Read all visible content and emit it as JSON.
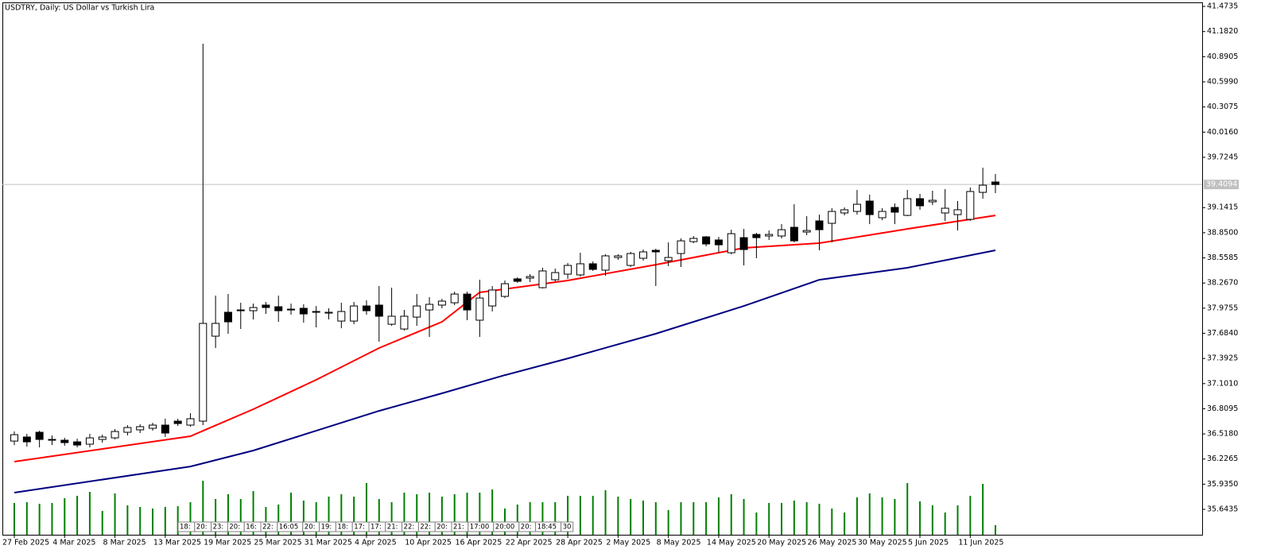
{
  "chart_data": {
    "type": "candlestick",
    "title": "USDTRY, Daily:  US Dollar vs Turkish Lira",
    "categories": [
      "27 Feb 2025",
      null,
      null,
      null,
      "4 Mar 2025",
      null,
      null,
      null,
      "8 Mar 2025",
      null,
      null,
      null,
      "13 Mar 2025",
      null,
      null,
      null,
      "19 Mar 2025",
      null,
      null,
      null,
      "25 Mar 2025",
      null,
      null,
      null,
      "31 Mar 2025",
      null,
      null,
      null,
      "4 Apr 2025",
      null,
      null,
      null,
      "10 Apr 2025",
      null,
      null,
      null,
      "16 Apr 2025",
      null,
      null,
      null,
      "22 Apr 2025",
      null,
      null,
      null,
      "28 Apr 2025",
      null,
      null,
      null,
      "2 May 2025",
      null,
      null,
      null,
      "8 May 2025",
      null,
      null,
      null,
      "14 May 2025",
      null,
      null,
      null,
      "20 May 2025",
      null,
      null,
      null,
      "26 May 2025",
      null,
      null,
      null,
      "30 May 2025",
      null,
      null,
      null,
      "5 Jun 2025",
      null,
      null,
      null,
      "11 Jun 2025",
      null,
      null
    ],
    "open": [
      36.435,
      36.482,
      36.537,
      36.454,
      36.445,
      36.426,
      36.399,
      36.454,
      36.472,
      36.537,
      36.565,
      36.583,
      36.62,
      36.666,
      36.62,
      36.666,
      37.651,
      37.928,
      37.946,
      37.946,
      38.011,
      37.992,
      37.955,
      37.974,
      37.928,
      37.918,
      37.826,
      37.826,
      38.001,
      38.011,
      37.789,
      37.734,
      37.872,
      37.955,
      38.011,
      38.038,
      38.139,
      37.836,
      38.001,
      38.112,
      38.315,
      38.324,
      38.213,
      38.305,
      38.37,
      38.361,
      38.49,
      38.416,
      38.563,
      38.471,
      38.554,
      38.646,
      38.526,
      38.609,
      38.747,
      38.802,
      38.766,
      38.618,
      38.793,
      38.83,
      38.812,
      38.812,
      38.913,
      38.858,
      38.987,
      38.959,
      39.079,
      39.097,
      39.217,
      39.024,
      39.143,
      39.051,
      39.245,
      39.208,
      39.079,
      39.06,
      39.005,
      39.318,
      39.438
    ],
    "high": [
      36.546,
      36.519,
      36.555,
      36.5,
      36.472,
      36.463,
      36.519,
      36.509,
      36.574,
      36.62,
      36.629,
      36.647,
      36.694,
      36.694,
      36.758,
      41.041,
      38.121,
      38.139,
      38.038,
      38.029,
      38.047,
      38.121,
      38.029,
      38.02,
      38.001,
      37.974,
      38.038,
      38.047,
      38.066,
      38.232,
      38.213,
      37.955,
      38.139,
      38.103,
      38.084,
      38.167,
      38.167,
      38.305,
      38.232,
      38.296,
      38.333,
      38.37,
      38.444,
      38.434,
      38.499,
      38.618,
      38.517,
      38.6,
      38.6,
      38.628,
      38.655,
      38.664,
      38.738,
      38.784,
      38.812,
      38.812,
      38.802,
      38.885,
      38.894,
      38.849,
      38.876,
      38.95,
      39.18,
      39.042,
      39.06,
      39.134,
      39.143,
      39.346,
      39.291,
      39.134,
      39.189,
      39.346,
      39.3,
      39.337,
      39.355,
      39.217,
      39.374,
      39.604,
      39.53
    ],
    "low": [
      36.389,
      36.371,
      36.362,
      36.389,
      36.38,
      36.362,
      36.362,
      36.417,
      36.454,
      36.5,
      36.528,
      36.555,
      36.482,
      36.611,
      36.602,
      36.62,
      37.513,
      37.679,
      37.734,
      37.845,
      37.909,
      37.817,
      37.9,
      37.808,
      37.753,
      37.845,
      37.743,
      37.789,
      37.9,
      37.587,
      37.771,
      37.716,
      37.771,
      37.642,
      37.974,
      38.011,
      37.836,
      37.642,
      37.937,
      38.093,
      38.269,
      38.278,
      38.204,
      38.287,
      38.315,
      38.342,
      38.407,
      38.351,
      38.536,
      38.453,
      38.526,
      38.232,
      38.462,
      38.453,
      38.729,
      38.692,
      38.618,
      38.6,
      38.471,
      38.554,
      38.766,
      38.784,
      38.738,
      38.821,
      38.646,
      38.738,
      39.051,
      39.06,
      38.95,
      38.996,
      38.95,
      39.042,
      39.116,
      39.171,
      38.987,
      38.876,
      38.987,
      39.245,
      39.309
    ],
    "close": [
      36.509,
      36.426,
      36.454,
      36.445,
      36.417,
      36.389,
      36.472,
      36.482,
      36.546,
      36.592,
      36.602,
      36.62,
      36.528,
      36.638,
      36.694,
      37.799,
      37.799,
      37.817,
      37.955,
      37.983,
      37.983,
      37.946,
      37.964,
      37.909,
      37.937,
      37.928,
      37.937,
      38.001,
      37.946,
      37.882,
      37.882,
      37.882,
      38.001,
      38.02,
      38.057,
      38.139,
      37.955,
      38.093,
      38.186,
      38.259,
      38.287,
      38.342,
      38.407,
      38.388,
      38.471,
      38.49,
      38.425,
      38.582,
      38.582,
      38.609,
      38.628,
      38.628,
      38.563,
      38.756,
      38.784,
      38.72,
      38.71,
      38.839,
      38.655,
      38.793,
      38.83,
      38.885,
      38.756,
      38.876,
      38.885,
      39.097,
      39.116,
      39.18,
      39.06,
      39.097,
      39.088,
      39.245,
      39.162,
      39.226,
      39.134,
      39.116,
      39.328,
      39.401,
      39.409
    ],
    "up_color": "#ffffff",
    "down_color": "#000000",
    "volume": [
      40,
      41,
      39,
      40,
      46,
      49,
      54,
      30,
      52,
      37,
      35,
      33,
      35,
      36,
      41,
      68,
      45,
      51,
      45,
      55,
      35,
      38,
      53,
      43,
      41,
      48,
      51,
      48,
      65,
      45,
      41,
      53,
      51,
      53,
      48,
      51,
      53,
      53,
      57,
      33,
      38,
      41,
      41,
      41,
      49,
      49,
      49,
      56,
      48,
      45,
      43,
      41,
      31,
      41,
      41,
      41,
      47,
      51,
      45,
      28,
      40,
      40,
      43,
      41,
      39,
      33,
      28,
      47,
      52,
      47,
      45,
      65,
      42,
      37,
      28,
      37,
      49,
      64,
      12
    ],
    "volume_color": "#008000",
    "moving_averages": [
      {
        "color": "#ff0000",
        "x": [
          0,
          14,
          19,
          24,
          29,
          34,
          37,
          44,
          51,
          58,
          64,
          71,
          78
        ],
        "values": [
          36.196,
          36.491,
          36.804,
          37.145,
          37.513,
          37.817,
          38.158,
          38.296,
          38.48,
          38.674,
          38.729,
          38.894,
          39.051
        ]
      },
      {
        "color": "#000080",
        "x": [
          0,
          14,
          19,
          24,
          29,
          34,
          39,
          44,
          51,
          58,
          64,
          71,
          78
        ],
        "values": [
          35.837,
          36.14,
          36.325,
          36.555,
          36.785,
          36.988,
          37.199,
          37.393,
          37.679,
          38.001,
          38.305,
          38.444,
          38.646
        ]
      }
    ],
    "last_price": 39.4094,
    "ylim": [
      35.349,
      41.52
    ],
    "yticks": [
      41.4735,
      {
        "value": 41.182,
        "label": "41.1820"
      },
      40.8905,
      {
        "value": 40.599,
        "label": "40.5990"
      },
      40.3075,
      {
        "value": 40.016,
        "label": "40.0160"
      },
      39.7245,
      39.1415,
      {
        "value": 38.85,
        "label": "38.8500"
      },
      38.5585,
      {
        "value": 38.267,
        "label": "38.2670"
      },
      37.9755,
      {
        "value": 37.684,
        "label": "37.6840"
      },
      37.3925,
      {
        "value": 37.101,
        "label": "37.1010"
      },
      36.8095,
      {
        "value": 36.518,
        "label": "36.5180"
      },
      36.2265,
      {
        "value": 35.935,
        "label": "35.9350"
      },
      35.6435
    ],
    "crosshair_labels": [
      "18:",
      "20:",
      "23:",
      "20:",
      "16:",
      "22:",
      "16:05",
      "20:",
      "19:",
      "18:",
      "17:",
      "17:",
      "21:",
      "22:",
      "22:",
      "20:",
      "21:",
      "17:00",
      "20:00",
      "20:",
      "18:45",
      "30"
    ]
  }
}
